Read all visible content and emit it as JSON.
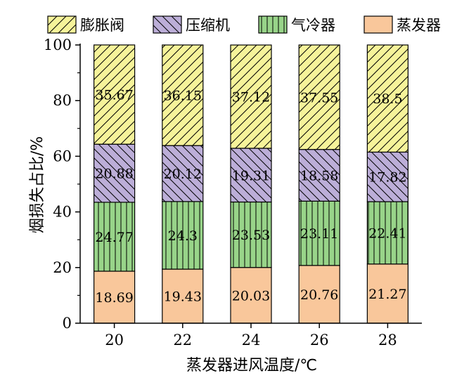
{
  "chart_data": {
    "type": "bar",
    "stacked": true,
    "categories": [
      "20",
      "22",
      "24",
      "26",
      "28"
    ],
    "series": [
      {
        "name": "蒸发器",
        "color": "#f9c79b",
        "pattern": "none",
        "values": [
          18.69,
          19.43,
          20.03,
          20.76,
          21.27
        ]
      },
      {
        "name": "气冷器",
        "color": "#98d489",
        "pattern": "vertical-lines",
        "values": [
          24.77,
          24.3,
          23.53,
          23.11,
          22.41
        ]
      },
      {
        "name": "压缩机",
        "color": "#bcaed8",
        "pattern": "backslash-hatch",
        "values": [
          20.88,
          20.12,
          19.31,
          18.58,
          17.82
        ]
      },
      {
        "name": "膨胀阀",
        "color": "#f6f39a",
        "pattern": "slash-hatch",
        "values": [
          35.67,
          36.15,
          37.12,
          37.55,
          38.5
        ]
      }
    ],
    "legend_order": [
      "膨胀阀",
      "压缩机",
      "气冷器",
      "蒸发器"
    ],
    "legend_position": "top",
    "xlabel": "蒸发器进风温度/℃",
    "ylabel": "烟损失占比/%",
    "ylim": [
      0,
      100
    ],
    "yticks": [
      0,
      20,
      40,
      60,
      80,
      100
    ],
    "grid": false
  }
}
